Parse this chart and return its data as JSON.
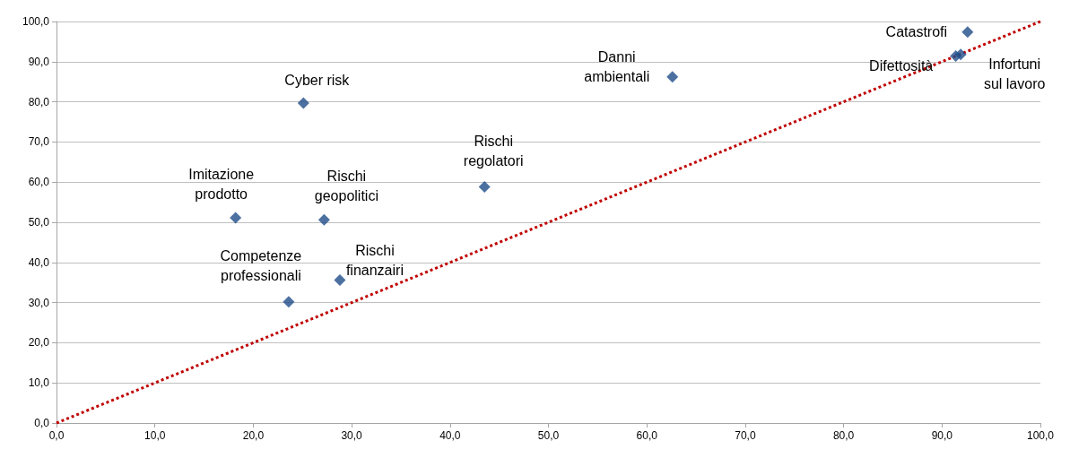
{
  "chart_data": {
    "type": "scatter",
    "marker": "diamond",
    "grid": "y",
    "xlim": [
      0,
      100
    ],
    "ylim": [
      0,
      100
    ],
    "xticks": [
      {
        "value": 0,
        "label": "0,0"
      },
      {
        "value": 10,
        "label": "10,0"
      },
      {
        "value": 20,
        "label": "20,0"
      },
      {
        "value": 30,
        "label": "30,0"
      },
      {
        "value": 40,
        "label": "40,0"
      },
      {
        "value": 50,
        "label": "50,0"
      },
      {
        "value": 60,
        "label": "60,0"
      },
      {
        "value": 70,
        "label": "70,0"
      },
      {
        "value": 80,
        "label": "80,0"
      },
      {
        "value": 90,
        "label": "90,0"
      },
      {
        "value": 100,
        "label": "100,0"
      }
    ],
    "yticks": [
      {
        "value": 0,
        "label": "0,0"
      },
      {
        "value": 10,
        "label": "10,0"
      },
      {
        "value": 20,
        "label": "20,0"
      },
      {
        "value": 30,
        "label": "30,0"
      },
      {
        "value": 40,
        "label": "40,0"
      },
      {
        "value": 50,
        "label": "50,0"
      },
      {
        "value": 60,
        "label": "60,0"
      },
      {
        "value": 70,
        "label": "70,0"
      },
      {
        "value": 80,
        "label": "80,0"
      },
      {
        "value": 90,
        "label": "90,0"
      },
      {
        "value": 100,
        "label": "100,0"
      }
    ],
    "series": [
      {
        "color": "#1f4e89",
        "x": [
          25.1,
          18.2,
          27.2,
          23.6,
          28.8,
          43.5,
          62.6,
          92.6,
          91.4,
          91.9
        ],
        "values": [
          79.7,
          51.1,
          50.6,
          30.2,
          35.6,
          58.8,
          86.2,
          97.4,
          91.4,
          91.8
        ]
      },
      {
        "type": "line",
        "color": "#c00000",
        "line_style": "dotted",
        "marker": "none",
        "x": [
          0,
          100
        ],
        "values": [
          0,
          100
        ]
      }
    ],
    "annotations": [
      {
        "text": "Cyber risk",
        "x": 25.1,
        "y": 79.7
      },
      {
        "text": "Imitazione\nprodotto",
        "x": 18.2,
        "y": 51.1
      },
      {
        "text": "Rischi\ngeopolitici",
        "x": 27.2,
        "y": 50.6
      },
      {
        "text": "Competenze\nprofessionali",
        "x": 23.6,
        "y": 30.2
      },
      {
        "text": "Rischi\nfinanzairi",
        "x": 28.8,
        "y": 35.6
      },
      {
        "text": "Rischi\nregolatori",
        "x": 43.5,
        "y": 58.8
      },
      {
        "text": "Danni\nambientali",
        "x": 62.6,
        "y": 86.2
      },
      {
        "text": "Catastrofi",
        "x": 92.6,
        "y": 97.4
      },
      {
        "text": "Difettosità",
        "x": 91.4,
        "y": 91.4
      },
      {
        "text": "Infortuni\nsul lavoro",
        "x": 91.9,
        "y": 91.8
      }
    ]
  }
}
